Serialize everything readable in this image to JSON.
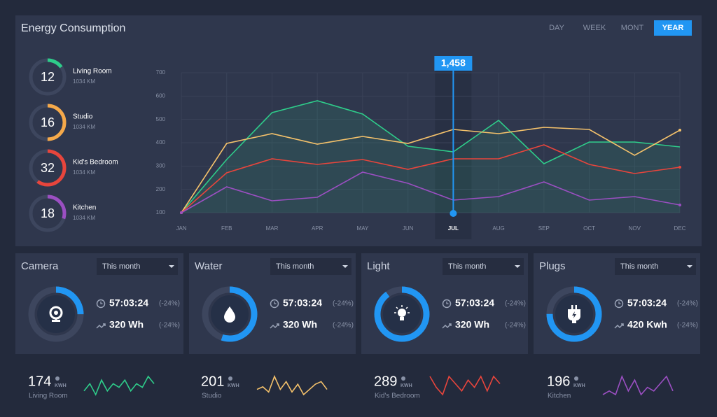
{
  "header": {
    "title": "Energy Consumption",
    "tabs": [
      {
        "label": "DAY",
        "active": false
      },
      {
        "label": "WEEK",
        "active": false
      },
      {
        "label": "MONT",
        "active": false
      },
      {
        "label": "YEAR",
        "active": true
      }
    ]
  },
  "rooms": [
    {
      "value": 12,
      "name": "Living Room",
      "sub": "1034 KM",
      "color": "#2ecc8a",
      "progress": 0.15
    },
    {
      "value": 16,
      "name": "Studio",
      "sub": "1034 KM",
      "color": "#f5a94a",
      "progress": 0.5
    },
    {
      "value": 32,
      "name": "Kid's Bedroom",
      "sub": "1034 KM",
      "color": "#e8453c",
      "progress": 0.6
    },
    {
      "value": 18,
      "name": "Kitchen",
      "sub": "1034 KM",
      "color": "#9b4fc2",
      "progress": 0.3
    }
  ],
  "chart_data": {
    "type": "line",
    "categories": [
      "JAN",
      "FEB",
      "MAR",
      "APR",
      "MAY",
      "JUN",
      "JUL",
      "AUG",
      "SEP",
      "OCT",
      "NOV",
      "DEC"
    ],
    "series": [
      {
        "color": "#2ecc8a",
        "fill": true,
        "values": [
          100,
          328,
          529,
          580,
          523,
          385,
          361,
          496,
          310,
          403,
          403,
          382
        ]
      },
      {
        "color": "#f5c26b",
        "fill": false,
        "values": [
          100,
          397,
          439,
          394,
          427,
          397,
          457,
          439,
          466,
          457,
          346,
          454
        ]
      },
      {
        "color": "#e8453c",
        "fill": false,
        "values": [
          100,
          271,
          331,
          307,
          328,
          286,
          331,
          331,
          391,
          307,
          268,
          295
        ]
      },
      {
        "color": "#9b4fc2",
        "fill": false,
        "values": [
          100,
          211,
          151,
          166,
          274,
          226,
          154,
          169,
          232,
          154,
          169,
          133
        ]
      }
    ],
    "ylim": [
      100,
      700
    ],
    "yticks": [
      100,
      200,
      300,
      400,
      500,
      600,
      700
    ],
    "grid": true,
    "tooltip": {
      "label": "1,458",
      "category": "JUL"
    }
  },
  "cards": [
    {
      "title": "Camera",
      "period": "This month",
      "progress": 0.25,
      "time": "57:03:24",
      "time_change": "(-24%)",
      "energy": "320 Wh",
      "energy_change": "(-24%)"
    },
    {
      "title": "Water",
      "period": "This month",
      "progress": 0.55,
      "time": "57:03:24",
      "time_change": "(-24%)",
      "energy": "320 Wh",
      "energy_change": "(-24%)"
    },
    {
      "title": "Light",
      "period": "This month",
      "progress": 0.9,
      "time": "57:03:24",
      "time_change": "(-24%)",
      "energy": "320 Wh",
      "energy_change": "(-24%)"
    },
    {
      "title": "Plugs",
      "period": "This month",
      "progress": 0.75,
      "time": "57:03:24",
      "time_change": "(-24%)",
      "energy": "420 Kwh",
      "energy_change": "(-24%)"
    }
  ],
  "summary": [
    {
      "value": 174,
      "unit": "KWH",
      "name": "Living Room",
      "color": "#2ecc8a",
      "trend": [
        3,
        5,
        2,
        6,
        3,
        5,
        4,
        6,
        3,
        5,
        4,
        7,
        5
      ]
    },
    {
      "value": 201,
      "unit": "KWH",
      "name": "Studio",
      "color": "#f5c26b",
      "trend": [
        3,
        4,
        2,
        8,
        3,
        6,
        2,
        5,
        1,
        3,
        5,
        6,
        3
      ]
    },
    {
      "value": 289,
      "unit": "KWH",
      "name": "Kid's Bedroom",
      "color": "#e8453c",
      "trend": [
        6,
        3,
        1,
        6,
        4,
        2,
        5,
        3,
        6,
        2,
        6,
        4
      ]
    },
    {
      "value": 196,
      "unit": "KWH",
      "name": "Kitchen",
      "color": "#9b4fc2",
      "trend": [
        3,
        4,
        3,
        8,
        4,
        7,
        3,
        5,
        4,
        6,
        8,
        4
      ]
    }
  ]
}
